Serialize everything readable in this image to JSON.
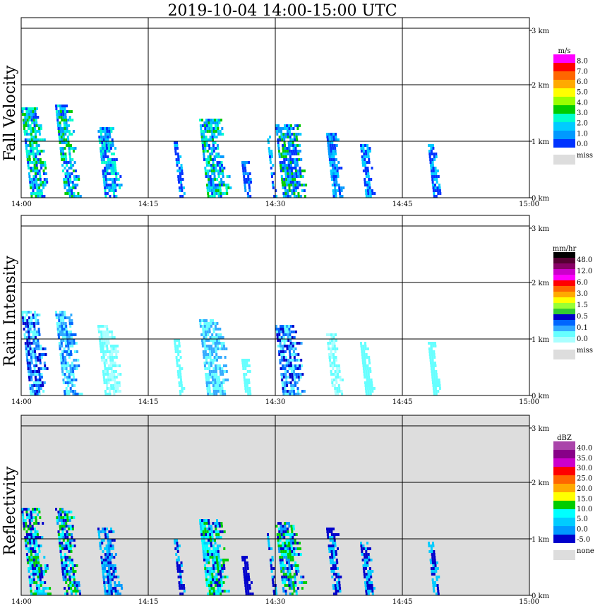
{
  "title": "2019-10-04   14:00-15:00 UTC",
  "x_ticks": [
    "14:00",
    "14:15",
    "14:30",
    "14:45",
    "15:00"
  ],
  "y_ticks": [
    "0 km",
    "1 km",
    "2 km",
    "3 km"
  ],
  "chart_data": [
    {
      "type": "heatmap",
      "ylabel": "Fall Velocity",
      "xlim": [
        "14:00",
        "15:00"
      ],
      "ylim": [
        0,
        3.2
      ],
      "y_unit": "km",
      "grid": true,
      "background": "#ffffff",
      "legend": {
        "unit": "m/s",
        "colors": [
          "#ff00ff",
          "#ff0000",
          "#ff6600",
          "#ffaa00",
          "#ffff00",
          "#99ff00",
          "#00cc00",
          "#00ffcc",
          "#00ccff",
          "#0099ff",
          "#0033ff"
        ],
        "labels": [
          "8.0",
          "7.0",
          "6.0",
          "5.0",
          "4.0",
          "3.0",
          "2.0",
          "1.0",
          "0.0"
        ],
        "miss_label": "miss",
        "miss_color": "#dddddd"
      },
      "cells": [
        {
          "t": "14:00",
          "top": 1.6,
          "dur": 2.5,
          "colors": [
            "#0033ff",
            "#00ccff",
            "#00cc00",
            "#00ffcc",
            "#0099ff"
          ]
        },
        {
          "t": "14:04",
          "top": 1.65,
          "dur": 2.2,
          "colors": [
            "#0033ff",
            "#00cc00",
            "#00ffcc",
            "#0099ff",
            "#00ccff"
          ]
        },
        {
          "t": "14:09",
          "top": 1.25,
          "dur": 2.3,
          "colors": [
            "#0033ff",
            "#00ccff",
            "#0099ff",
            "#00ffcc"
          ]
        },
        {
          "t": "14:18",
          "top": 1.0,
          "dur": 0.8,
          "colors": [
            "#0033ff",
            "#00ccff"
          ]
        },
        {
          "t": "14:21",
          "top": 1.4,
          "dur": 3.0,
          "colors": [
            "#0033ff",
            "#00ccff",
            "#00cc00",
            "#0099ff",
            "#00ffcc"
          ]
        },
        {
          "t": "14:26",
          "top": 0.65,
          "dur": 1.0,
          "colors": [
            "#0033ff",
            "#0099ff"
          ]
        },
        {
          "t": "14:29",
          "top": 1.1,
          "dur": 0.5,
          "colors": [
            "#0033ff",
            "#00ccff"
          ]
        },
        {
          "t": "14:30",
          "top": 1.3,
          "dur": 3.0,
          "colors": [
            "#0033ff",
            "#00ccff",
            "#0099ff",
            "#00cc00"
          ]
        },
        {
          "t": "14:36",
          "top": 1.15,
          "dur": 1.5,
          "colors": [
            "#0033ff",
            "#00ccff",
            "#0099ff"
          ]
        },
        {
          "t": "14:40",
          "top": 0.95,
          "dur": 1.2,
          "colors": [
            "#0033ff",
            "#00ccff"
          ]
        },
        {
          "t": "14:48",
          "top": 0.95,
          "dur": 1.0,
          "colors": [
            "#0033ff",
            "#00ccff"
          ]
        }
      ]
    },
    {
      "type": "heatmap",
      "ylabel": "Rain Intensity",
      "xlim": [
        "14:00",
        "15:00"
      ],
      "ylim": [
        0,
        3.2
      ],
      "y_unit": "km",
      "grid": true,
      "background": "#ffffff",
      "legend": {
        "unit": "mm/hr",
        "colors": [
          "#000000",
          "#550033",
          "#880066",
          "#cc00cc",
          "#ff00ff",
          "#ff0000",
          "#ff6600",
          "#ffaa00",
          "#ffff00",
          "#99ff33",
          "#33cc33",
          "#0000cc",
          "#0066ff",
          "#33aaff",
          "#66ffff",
          "#aaffff"
        ],
        "labels": [
          "48.0",
          "12.0",
          "6.0",
          "3.0",
          "1.5",
          "0.5",
          "0.1",
          "0.0"
        ],
        "miss_label": "miss",
        "miss_color": "#dddddd"
      },
      "cells": [
        {
          "t": "14:00",
          "top": 1.5,
          "dur": 2.5,
          "colors": [
            "#66ffff",
            "#33aaff",
            "#0066ff",
            "#0000cc"
          ]
        },
        {
          "t": "14:04",
          "top": 1.5,
          "dur": 2.2,
          "colors": [
            "#66ffff",
            "#33aaff",
            "#0066ff"
          ]
        },
        {
          "t": "14:09",
          "top": 1.25,
          "dur": 2.3,
          "colors": [
            "#66ffff",
            "#aaffff"
          ]
        },
        {
          "t": "14:18",
          "top": 1.0,
          "dur": 0.8,
          "colors": [
            "#66ffff"
          ]
        },
        {
          "t": "14:21",
          "top": 1.35,
          "dur": 3.0,
          "colors": [
            "#66ffff",
            "#33aaff"
          ]
        },
        {
          "t": "14:26",
          "top": 0.65,
          "dur": 1.0,
          "colors": [
            "#66ffff"
          ]
        },
        {
          "t": "14:30",
          "top": 1.25,
          "dur": 3.0,
          "colors": [
            "#66ffff",
            "#33aaff",
            "#0066ff",
            "#0000cc"
          ]
        },
        {
          "t": "14:36",
          "top": 1.1,
          "dur": 1.5,
          "colors": [
            "#66ffff",
            "#aaffff"
          ]
        },
        {
          "t": "14:40",
          "top": 0.95,
          "dur": 1.2,
          "colors": [
            "#66ffff"
          ]
        },
        {
          "t": "14:48",
          "top": 0.95,
          "dur": 1.0,
          "colors": [
            "#66ffff"
          ]
        }
      ]
    },
    {
      "type": "heatmap",
      "ylabel": "Reflectivity",
      "xlim": [
        "14:00",
        "15:00"
      ],
      "ylim": [
        0,
        3.2
      ],
      "y_unit": "km",
      "grid": true,
      "background": "#dddddd",
      "legend": {
        "unit": "dBZ",
        "colors": [
          "#aa44aa",
          "#880088",
          "#cc00cc",
          "#ff0000",
          "#ff6600",
          "#ffaa00",
          "#ffff00",
          "#00cc00",
          "#00ffff",
          "#00ccff",
          "#0099ff",
          "#0000cc"
        ],
        "labels": [
          "40.0",
          "35.0",
          "30.0",
          "25.0",
          "20.0",
          "15.0",
          "10.0",
          "5.0",
          "0.0",
          "-5.0"
        ],
        "miss_label": "none",
        "miss_color": "#dddddd"
      },
      "cells": [
        {
          "t": "14:00",
          "top": 1.55,
          "dur": 2.5,
          "colors": [
            "#0000cc",
            "#00ccff",
            "#00ffff",
            "#00cc00"
          ]
        },
        {
          "t": "14:04",
          "top": 1.55,
          "dur": 2.2,
          "colors": [
            "#0000cc",
            "#00ffff",
            "#00cc00",
            "#0099ff"
          ]
        },
        {
          "t": "14:09",
          "top": 1.2,
          "dur": 2.3,
          "colors": [
            "#0000cc",
            "#00ccff",
            "#0099ff"
          ]
        },
        {
          "t": "14:18",
          "top": 1.0,
          "dur": 0.8,
          "colors": [
            "#0000cc",
            "#00ccff"
          ]
        },
        {
          "t": "14:21",
          "top": 1.35,
          "dur": 3.0,
          "colors": [
            "#0000cc",
            "#00ffff",
            "#00ccff",
            "#00cc00"
          ]
        },
        {
          "t": "14:26",
          "top": 0.7,
          "dur": 1.0,
          "colors": [
            "#0000cc"
          ]
        },
        {
          "t": "14:29",
          "top": 1.1,
          "dur": 0.5,
          "colors": [
            "#0000cc",
            "#00ccff"
          ]
        },
        {
          "t": "14:30",
          "top": 1.3,
          "dur": 3.0,
          "colors": [
            "#0000cc",
            "#00ffff",
            "#00cc00",
            "#0099ff"
          ]
        },
        {
          "t": "14:36",
          "top": 1.2,
          "dur": 1.5,
          "colors": [
            "#0000cc",
            "#00ccff"
          ]
        },
        {
          "t": "14:40",
          "top": 0.95,
          "dur": 1.2,
          "colors": [
            "#0000cc",
            "#00ccff"
          ]
        },
        {
          "t": "14:48",
          "top": 0.95,
          "dur": 1.0,
          "colors": [
            "#0000cc",
            "#00ccff"
          ]
        }
      ]
    }
  ]
}
